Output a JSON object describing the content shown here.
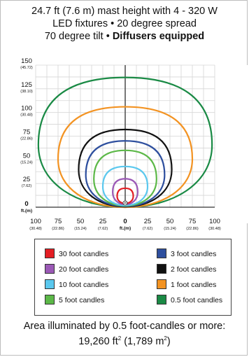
{
  "title": {
    "line1": "24.7 ft (7.6 m) mast height with 4 - 320 W",
    "line2": "LED fixtures • 20 degree spread",
    "line3_plain": "70 degree tilt • ",
    "line3_bold": "Diffusers equipped"
  },
  "chart_data": {
    "type": "contour",
    "title": "24.7 ft (7.6 m) mast height with 4 - 320 W LED fixtures • 20 degree spread 70 degree tilt • Diffusers equipped",
    "xlabel": "ft.(m)",
    "ylabel": "ft.(m)",
    "xlim": [
      -100,
      100
    ],
    "ylim": [
      0,
      150
    ],
    "grid": true,
    "legend_position": "bottom",
    "x_ticks": [
      {
        "value": -100,
        "ft": "100",
        "m": "(30.48)"
      },
      {
        "value": -75,
        "ft": "75",
        "m": "(22.86)"
      },
      {
        "value": -50,
        "ft": "50",
        "m": "(15.24)"
      },
      {
        "value": -25,
        "ft": "25",
        "m": "(7.62)"
      },
      {
        "value": 0,
        "ft": "0",
        "m": "ft.(m)"
      },
      {
        "value": 25,
        "ft": "25",
        "m": "(7.62)"
      },
      {
        "value": 50,
        "ft": "50",
        "m": "(15.24)"
      },
      {
        "value": 75,
        "ft": "75",
        "m": "(22.86)"
      },
      {
        "value": 100,
        "ft": "100",
        "m": "(30.48)"
      }
    ],
    "y_ticks": [
      {
        "value": 150,
        "ft": "150",
        "m": "(45.72)"
      },
      {
        "value": 125,
        "ft": "125",
        "m": "(38.10)"
      },
      {
        "value": 100,
        "ft": "100",
        "m": "(30.48)"
      },
      {
        "value": 75,
        "ft": "75",
        "m": "(22.86)"
      },
      {
        "value": 50,
        "ft": "50",
        "m": "(15.24)"
      },
      {
        "value": 25,
        "ft": "25",
        "m": "(7.62)"
      },
      {
        "value": 0,
        "ft": "0",
        "m": "ft.(m)"
      }
    ],
    "series": [
      {
        "name": "30 foot candles",
        "color": "#e31e24",
        "half_width": 9,
        "y_max": 20,
        "y_min": 4
      },
      {
        "name": "20 foot candles",
        "color": "#9b59b6",
        "half_width": 14,
        "y_max": 30,
        "y_min": 3
      },
      {
        "name": "10 foot candles",
        "color": "#5bc8ee",
        "half_width": 25,
        "y_max": 43,
        "y_min": 2
      },
      {
        "name": "5 foot candles",
        "color": "#5cb848",
        "half_width": 35,
        "y_max": 60,
        "y_min": 1.5
      },
      {
        "name": "3 foot candles",
        "color": "#2e4f9e",
        "half_width": 44,
        "y_max": 70,
        "y_min": 1
      },
      {
        "name": "2 foot candles",
        "color": "#111111",
        "half_width": 52,
        "y_max": 82,
        "y_min": 0.5
      },
      {
        "name": "1 foot candles",
        "color": "#f39322",
        "half_width": 75,
        "y_max": 106,
        "y_min": 0
      },
      {
        "name": "0.5 foot candles",
        "color": "#1a8a45",
        "half_width": 97,
        "y_max": 137,
        "y_min": 0
      }
    ],
    "center_marker": "20"
  },
  "legend": {
    "items": [
      {
        "label": "30 foot candles",
        "color": "#e31e24"
      },
      {
        "label": "3 foot candles",
        "color": "#2e4f9e"
      },
      {
        "label": "20 foot candles",
        "color": "#9b59b6"
      },
      {
        "label": "2 foot candles",
        "color": "#111111"
      },
      {
        "label": "10 foot candles",
        "color": "#5bc8ee"
      },
      {
        "label": "1 foot candles",
        "color": "#f39322"
      },
      {
        "label": "5 foot candles",
        "color": "#5cb848"
      },
      {
        "label": "0.5 foot candles",
        "color": "#1a8a45"
      }
    ]
  },
  "footer": {
    "line1": "Area illuminated by 0.5 foot-candles or more:",
    "area_ft": "19,260 ft",
    "area_ft_sup": "2",
    "area_m_open": " (1,789 m",
    "area_m_sup": "2",
    "area_m_close": ")"
  }
}
